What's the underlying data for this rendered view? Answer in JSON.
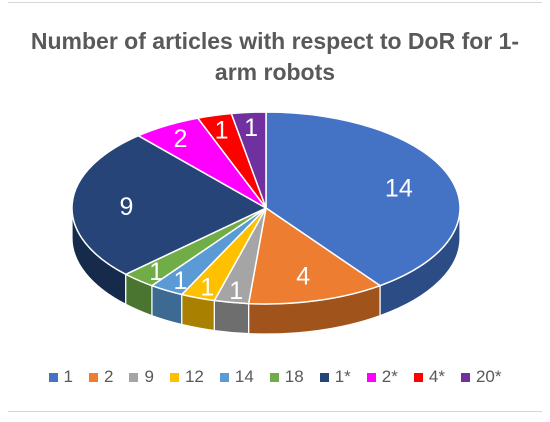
{
  "chart_data": {
    "type": "pie",
    "title": "Number of articles with respect to DoR for 1-arm robots",
    "three_d": true,
    "legend_position": "bottom",
    "categories": [
      "1",
      "2",
      "9",
      "12",
      "14",
      "18",
      "1*",
      "2*",
      "4*",
      "20*"
    ],
    "values": [
      14,
      4,
      1,
      1,
      1,
      1,
      9,
      2,
      1,
      1
    ],
    "data_labels": [
      "14",
      "4",
      "1",
      "1",
      "1",
      "1",
      "9",
      "2",
      "1",
      "1"
    ],
    "colors": [
      "#4472C4",
      "#ED7D31",
      "#A5A5A5",
      "#FFC000",
      "#5B9BD5",
      "#70AD47",
      "#264478",
      "#FF00FF",
      "#FF0000",
      "#7030A0"
    ],
    "side_colors": [
      "#2C4C86",
      "#A1531C",
      "#6E6E6E",
      "#AA8000",
      "#3C6A93",
      "#4A7530",
      "#162A4C",
      "#AA00AA",
      "#AA0000",
      "#4A1F6B"
    ]
  }
}
